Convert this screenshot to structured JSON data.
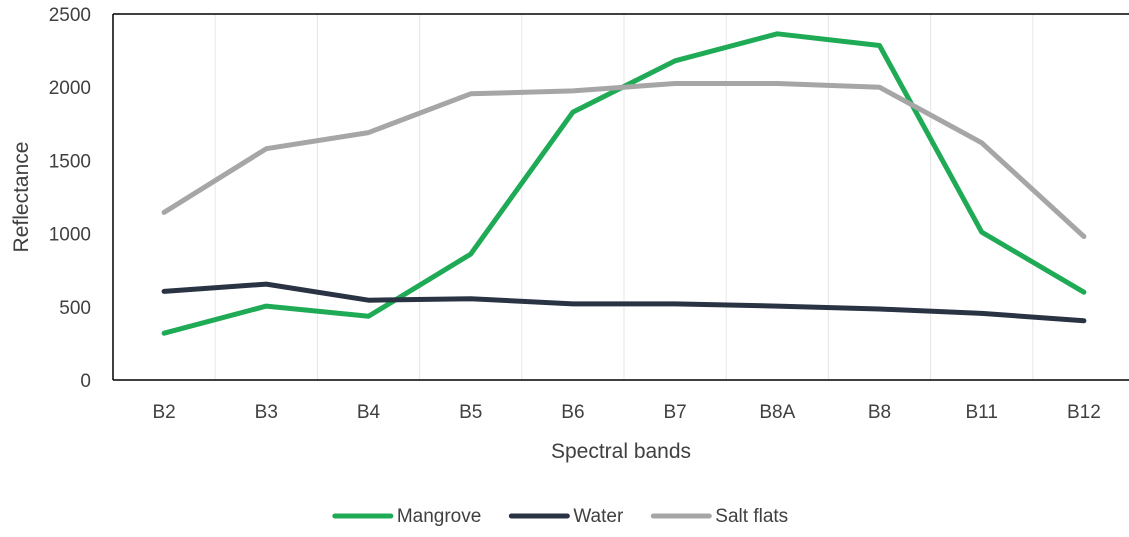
{
  "chart_data": {
    "type": "line",
    "title": "",
    "xlabel": "Spectral bands",
    "ylabel": "Reflectance",
    "categories": [
      "B2",
      "B3",
      "B4",
      "B5",
      "B6",
      "B7",
      "B8A",
      "B8",
      "B11",
      "B12"
    ],
    "ylim": [
      0,
      2500
    ],
    "yticks": [
      "0",
      "500",
      "1000",
      "1500",
      "2000",
      "2500"
    ],
    "grid": "vertical",
    "legend_position": "bottom",
    "series": [
      {
        "name": "Mangrove",
        "color": "#1faa55",
        "values": [
          320,
          505,
          435,
          860,
          1830,
          2180,
          2365,
          2285,
          1010,
          600
        ]
      },
      {
        "name": "Water",
        "color": "#2a3344",
        "values": [
          605,
          655,
          545,
          555,
          520,
          520,
          505,
          485,
          455,
          405
        ]
      },
      {
        "name": "Salt flats",
        "color": "#a6a6a6",
        "values": [
          1145,
          1580,
          1690,
          1955,
          1975,
          2025,
          2025,
          2000,
          1620,
          980
        ]
      }
    ]
  }
}
